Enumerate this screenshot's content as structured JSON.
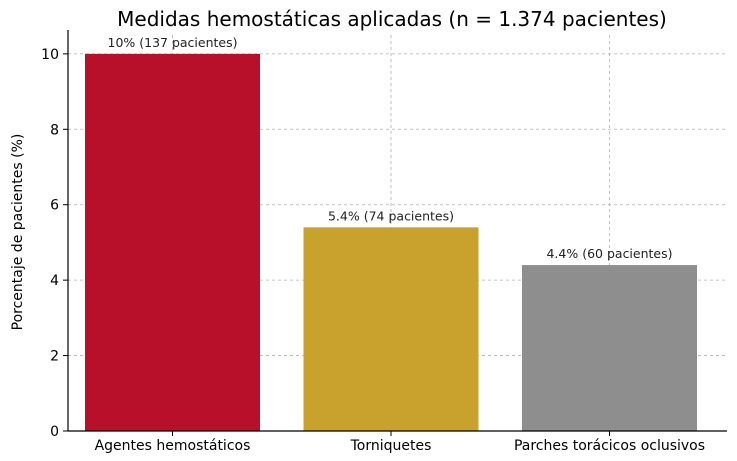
{
  "chart_data": {
    "type": "bar",
    "title": "Medidas hemostáticas aplicadas (n = 1.374 pacientes)",
    "xlabel": "",
    "ylabel": "Porcentaje de pacientes (%)",
    "categories": [
      "Agentes hemostáticos",
      "Torniquetes",
      "Parches torácicos oclusivos"
    ],
    "values": [
      10,
      5.4,
      4.4
    ],
    "data_labels": [
      "10% (137 pacientes)",
      "5.4% (74 pacientes)",
      "4.4% (60 pacientes)"
    ],
    "colors": [
      "#b8102a",
      "#c9a22e",
      "#8e8e8e"
    ],
    "ylim": [
      0,
      10.5
    ],
    "yticks": [
      0,
      2,
      4,
      6,
      8,
      10
    ],
    "grid": true,
    "legend": "none"
  }
}
